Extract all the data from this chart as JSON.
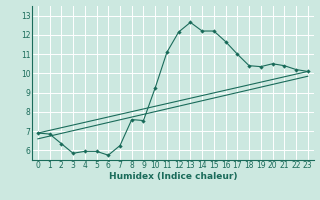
{
  "title": "",
  "xlabel": "Humidex (Indice chaleur)",
  "bg_color": "#cce8e0",
  "grid_color": "#ffffff",
  "line_color": "#1a6b5a",
  "xlim": [
    -0.5,
    23.5
  ],
  "ylim": [
    5.5,
    13.5
  ],
  "xticks": [
    0,
    1,
    2,
    3,
    4,
    5,
    6,
    7,
    8,
    9,
    10,
    11,
    12,
    13,
    14,
    15,
    16,
    17,
    18,
    19,
    20,
    21,
    22,
    23
  ],
  "yticks": [
    6,
    7,
    8,
    9,
    10,
    11,
    12,
    13
  ],
  "curve_x": [
    0,
    1,
    2,
    3,
    4,
    5,
    6,
    7,
    8,
    9,
    10,
    11,
    12,
    13,
    14,
    15,
    16,
    17,
    18,
    19,
    20,
    21,
    22,
    23
  ],
  "curve_y": [
    6.9,
    6.85,
    6.35,
    5.85,
    5.95,
    5.95,
    5.75,
    6.25,
    7.6,
    7.55,
    9.25,
    11.1,
    12.15,
    12.65,
    12.2,
    12.2,
    11.65,
    11.0,
    10.4,
    10.35,
    10.5,
    10.4,
    10.2,
    10.1
  ],
  "line1_x": [
    0,
    23
  ],
  "line1_y": [
    6.9,
    10.1
  ],
  "line2_x": [
    0,
    23
  ],
  "line2_y": [
    6.6,
    9.85
  ],
  "xlabel_fontsize": 6.5,
  "tick_fontsize": 5.5
}
